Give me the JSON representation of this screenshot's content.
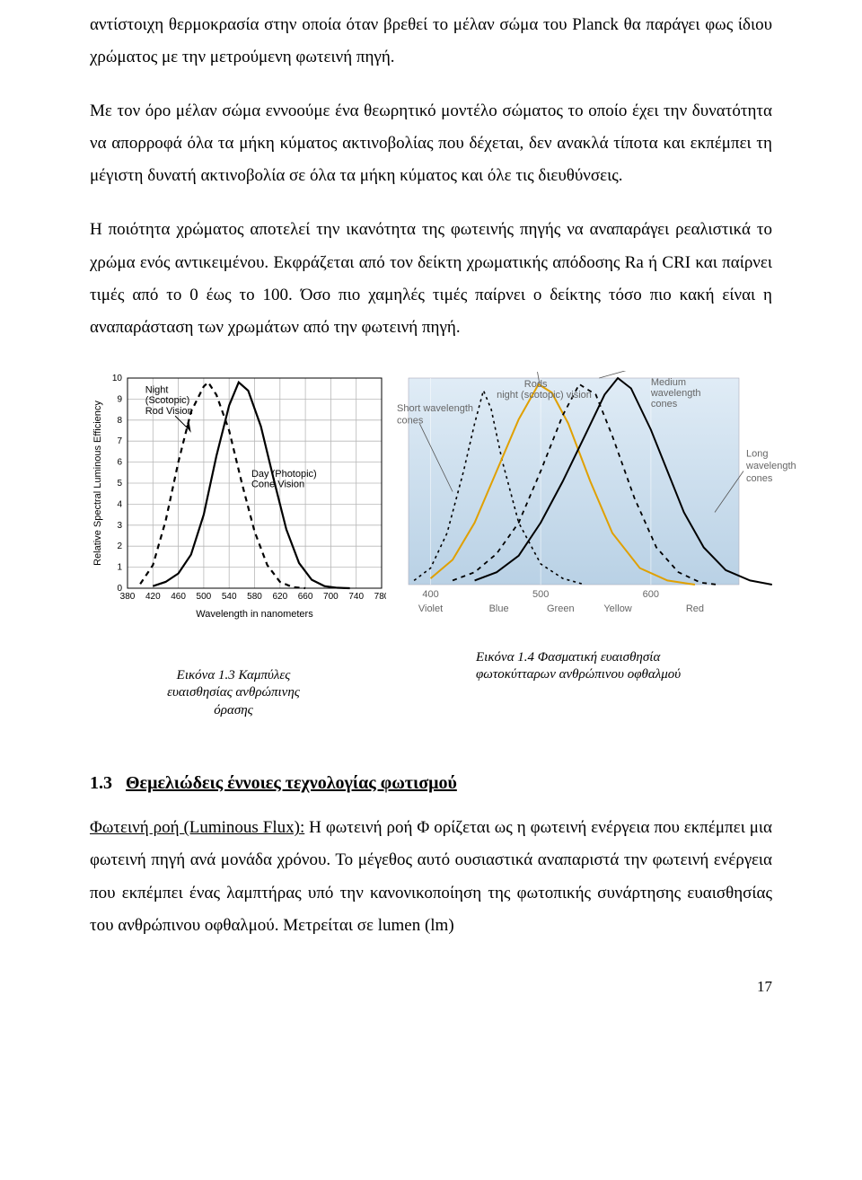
{
  "paragraphs": {
    "p1": "αντίστοιχη θερμοκρασία στην οποία όταν βρεθεί το μέλαν σώμα του Planck θα παράγει φως ίδιου χρώματος με την μετρούμενη φωτεινή πηγή.",
    "p2": "Με τον όρο μέλαν σώμα εννοούμε ένα θεωρητικό μοντέλο σώματος το οποίο έχει την δυνατότητα να απορροφά όλα τα μήκη κύματος ακτινοβολίας που δέχεται, δεν ανακλά τίποτα και εκπέμπει τη μέγιστη δυνατή ακτινοβολία σε όλα τα μήκη κύματος και όλε τις διευθύνσεις.",
    "p3": "Η ποιότητα χρώματος αποτελεί την ικανότητα της φωτεινής πηγής να αναπαράγει ρεαλιστικά το χρώμα ενός αντικειμένου. Εκφράζεται από τον δείκτη χρωματικής απόδοσης Ra ή CRI και παίρνει τιμές από το 0 έως το 100. Όσο πιο χαμηλές τιμές παίρνει ο δείκτης τόσο πιο κακή είναι η αναπαράσταση των χρωμάτων από την φωτεινή πηγή."
  },
  "fig1_3": {
    "caption_1": "Εικόνα 1.3 Καμπύλες",
    "caption_2": "ευαισθησίας ανθρώπινης",
    "caption_3": "όρασης",
    "y_axis_label": "Relative Spectral Luminous Efficiency",
    "x_axis_label": "Wavelength in nanometers",
    "x_ticks": [
      "380",
      "420",
      "460",
      "500",
      "540",
      "580",
      "620",
      "660",
      "700",
      "740",
      "780"
    ],
    "y_ticks": [
      "0",
      "1",
      "2",
      "3",
      "4",
      "5",
      "6",
      "7",
      "8",
      "9",
      "10"
    ],
    "annotations": {
      "night_1": "Night",
      "night_2": "(Scotopic)",
      "night_3": "Rod Vision",
      "day_1": "Day (Photopic)",
      "day_2": "Cone Vision"
    },
    "style": {
      "grid_color": "#b8b8b8",
      "axis_color": "#000000",
      "scotopic_color": "#000000",
      "scotopic_dash": "6,5",
      "photopic_color": "#000000",
      "line_width_main": 2.2,
      "background": "#ffffff",
      "font_size_ticks": 10,
      "font_size_axis": 11,
      "font_size_ann": 11
    },
    "scotopic_curve": [
      [
        400,
        0.2
      ],
      [
        420,
        1.1
      ],
      [
        440,
        3.2
      ],
      [
        460,
        6.0
      ],
      [
        480,
        8.4
      ],
      [
        500,
        9.6
      ],
      [
        507,
        9.8
      ],
      [
        520,
        9.2
      ],
      [
        540,
        7.5
      ],
      [
        560,
        5.0
      ],
      [
        580,
        2.7
      ],
      [
        600,
        1.1
      ],
      [
        620,
        0.3
      ],
      [
        640,
        0.05
      ],
      [
        660,
        0
      ]
    ],
    "photopic_curve": [
      [
        420,
        0.1
      ],
      [
        440,
        0.3
      ],
      [
        460,
        0.7
      ],
      [
        480,
        1.6
      ],
      [
        500,
        3.5
      ],
      [
        520,
        6.3
      ],
      [
        540,
        8.7
      ],
      [
        555,
        9.8
      ],
      [
        570,
        9.4
      ],
      [
        590,
        7.7
      ],
      [
        610,
        5.2
      ],
      [
        630,
        2.8
      ],
      [
        650,
        1.2
      ],
      [
        670,
        0.4
      ],
      [
        690,
        0.1
      ],
      [
        710,
        0.02
      ],
      [
        730,
        0
      ]
    ]
  },
  "fig1_4": {
    "caption_1": "Εικόνα 1.4 Φασματική ευαισθησία",
    "caption_2": "φωτοκύτταρων ανθρώπινου οφθαλμού",
    "bg_gradient_top": "#e0ecf6",
    "bg_gradient_bot": "#b9d1e5",
    "bg_inner_top": "#dbe8f3",
    "bg_inner_bot": "#a9c6de",
    "grid_line_color": "#cccccc",
    "label_color": "#666666",
    "x_ticks": [
      {
        "v": 400,
        "label": "400",
        "name": "Violet"
      },
      {
        "v": 500,
        "label": "500",
        "name": "Green"
      },
      {
        "v": 600,
        "label": "600",
        "name": ""
      }
    ],
    "bottom_labels": [
      {
        "x": 400,
        "t": "Violet"
      },
      {
        "x": 462,
        "t": "Blue"
      },
      {
        "x": 518,
        "t": "Green"
      },
      {
        "x": 570,
        "t": "Yellow"
      },
      {
        "x": 640,
        "t": "Red"
      }
    ],
    "annotations": {
      "short": "Short wavelength\ncones",
      "rods_1": "Rods",
      "rods_2": "night (scotopic) vision",
      "medium_1": "Medium",
      "medium_2": "wavelength",
      "medium_3": "cones",
      "long_1": "Long",
      "long_2": "wavelength",
      "long_3": "cones"
    },
    "curves": {
      "short": {
        "color": "#000000",
        "dash": "3,4",
        "width": 1.6,
        "pts": [
          [
            385,
            0.02
          ],
          [
            400,
            0.08
          ],
          [
            415,
            0.25
          ],
          [
            430,
            0.55
          ],
          [
            440,
            0.78
          ],
          [
            448,
            0.94
          ],
          [
            455,
            0.85
          ],
          [
            465,
            0.6
          ],
          [
            480,
            0.3
          ],
          [
            500,
            0.1
          ],
          [
            520,
            0.03
          ],
          [
            540,
            0
          ]
        ]
      },
      "rods": {
        "color": "#e0a000",
        "dash": "",
        "width": 2.0,
        "pts": [
          [
            400,
            0.03
          ],
          [
            420,
            0.12
          ],
          [
            440,
            0.3
          ],
          [
            460,
            0.55
          ],
          [
            480,
            0.8
          ],
          [
            498,
            0.97
          ],
          [
            510,
            0.93
          ],
          [
            525,
            0.78
          ],
          [
            545,
            0.5
          ],
          [
            565,
            0.25
          ],
          [
            590,
            0.08
          ],
          [
            615,
            0.02
          ],
          [
            640,
            0
          ]
        ]
      },
      "medium": {
        "color": "#000000",
        "dash": "5,5",
        "width": 1.8,
        "pts": [
          [
            420,
            0.02
          ],
          [
            440,
            0.06
          ],
          [
            460,
            0.15
          ],
          [
            480,
            0.3
          ],
          [
            500,
            0.55
          ],
          [
            520,
            0.82
          ],
          [
            535,
            0.97
          ],
          [
            550,
            0.92
          ],
          [
            565,
            0.72
          ],
          [
            585,
            0.42
          ],
          [
            605,
            0.18
          ],
          [
            625,
            0.06
          ],
          [
            645,
            0.01
          ],
          [
            660,
            0
          ]
        ]
      },
      "long": {
        "color": "#000000",
        "dash": "",
        "width": 2.0,
        "pts": [
          [
            440,
            0.02
          ],
          [
            460,
            0.06
          ],
          [
            480,
            0.14
          ],
          [
            500,
            0.3
          ],
          [
            520,
            0.5
          ],
          [
            540,
            0.72
          ],
          [
            558,
            0.92
          ],
          [
            570,
            1.0
          ],
          [
            582,
            0.95
          ],
          [
            600,
            0.75
          ],
          [
            615,
            0.55
          ],
          [
            630,
            0.35
          ],
          [
            648,
            0.18
          ],
          [
            668,
            0.07
          ],
          [
            690,
            0.02
          ],
          [
            710,
            0
          ]
        ]
      }
    }
  },
  "section": {
    "num": "1.3",
    "title": "Θεμελιώδεις έννοιες τεχνολογίας φωτισμού"
  },
  "definition": {
    "term": "Φωτεινή ροή (Luminous Flux):",
    "text": "  Η φωτεινή ροή Φ ορίζεται ως η φωτεινή ενέργεια που εκπέμπει μια φωτεινή πηγή ανά μονάδα χρόνου. Το μέγεθος αυτό ουσιαστικά αναπαριστά την φωτεινή ενέργεια που εκπέμπει ένας λαμπτήρας υπό την κανονικοποίηση της φωτοπικής συνάρτησης ευαισθησίας του ανθρώπινου οφθαλμού. Μετρείται σε lumen (lm)"
  },
  "page_number": "17"
}
